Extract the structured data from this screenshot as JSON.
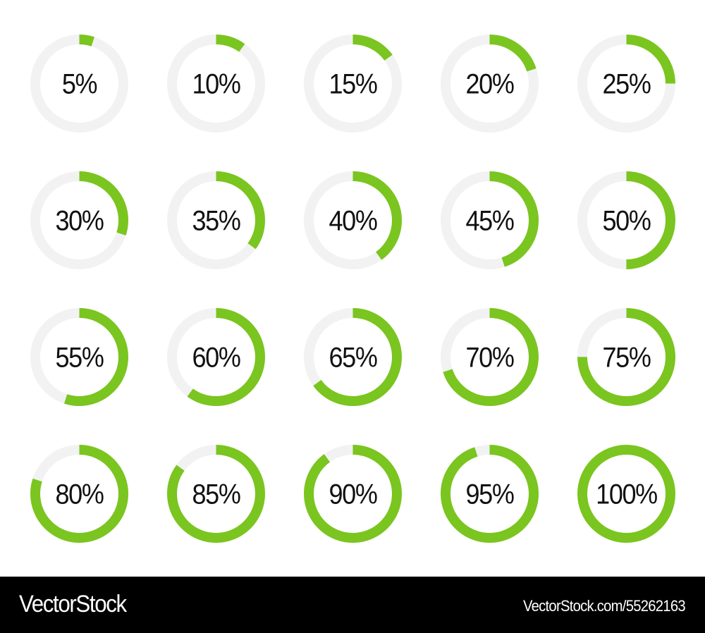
{
  "colors": {
    "progress": "#7ac51f",
    "track": "#f2f2f2",
    "text": "#111111",
    "footer_bg": "#000000"
  },
  "indicators": [
    {
      "label": "5%",
      "value": 5
    },
    {
      "label": "10%",
      "value": 10
    },
    {
      "label": "15%",
      "value": 15
    },
    {
      "label": "20%",
      "value": 20
    },
    {
      "label": "25%",
      "value": 25
    },
    {
      "label": "30%",
      "value": 30
    },
    {
      "label": "35%",
      "value": 35
    },
    {
      "label": "40%",
      "value": 40
    },
    {
      "label": "45%",
      "value": 45
    },
    {
      "label": "50%",
      "value": 50
    },
    {
      "label": "55%",
      "value": 55
    },
    {
      "label": "60%",
      "value": 60
    },
    {
      "label": "65%",
      "value": 65
    },
    {
      "label": "70%",
      "value": 70
    },
    {
      "label": "75%",
      "value": 75
    },
    {
      "label": "80%",
      "value": 80
    },
    {
      "label": "85%",
      "value": 85
    },
    {
      "label": "90%",
      "value": 90
    },
    {
      "label": "95%",
      "value": 95
    },
    {
      "label": "100%",
      "value": 100
    }
  ],
  "footer": {
    "brand": "VectorStock",
    "reference": "VectorStock.com/55262163"
  }
}
